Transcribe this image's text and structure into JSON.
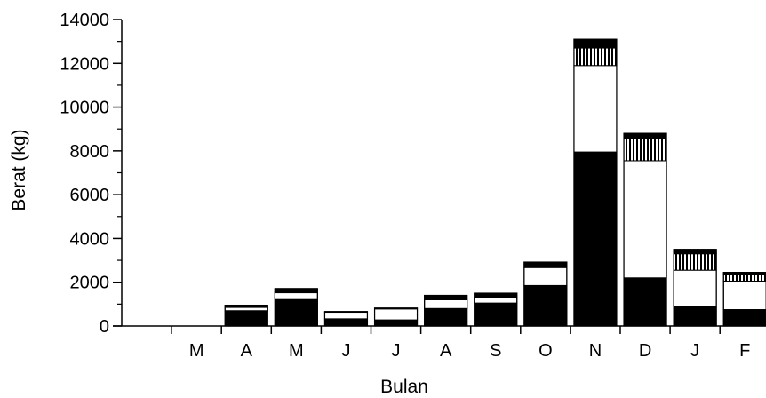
{
  "chart_data": {
    "type": "bar",
    "stacked": true,
    "title": "",
    "xlabel": "Bulan",
    "ylabel": "Berat (kg)",
    "ylim": [
      0,
      14000
    ],
    "yticks": [
      0,
      2000,
      4000,
      6000,
      8000,
      10000,
      12000,
      14000
    ],
    "grid": false,
    "legend": "none",
    "categories": [
      "",
      "M",
      "A",
      "M",
      "J",
      "J",
      "A",
      "S",
      "O",
      "N",
      "D",
      "J",
      "F"
    ],
    "series": [
      {
        "fill": "solid-black",
        "values": [
          0,
          0,
          700,
          1250,
          330,
          280,
          800,
          1050,
          1850,
          7950,
          2200,
          900,
          750
        ]
      },
      {
        "fill": "white",
        "values": [
          0,
          0,
          150,
          270,
          300,
          500,
          400,
          270,
          820,
          3950,
          5350,
          1650,
          1300
        ]
      },
      {
        "fill": "vertical-hatch",
        "values": [
          0,
          0,
          0,
          40,
          0,
          0,
          0,
          0,
          0,
          800,
          1000,
          750,
          300
        ]
      },
      {
        "fill": "black-cap",
        "values": [
          0,
          0,
          100,
          150,
          30,
          40,
          200,
          180,
          250,
          400,
          250,
          200,
          100
        ]
      }
    ]
  },
  "colors": {
    "ink": "#000000",
    "paper": "#ffffff"
  }
}
